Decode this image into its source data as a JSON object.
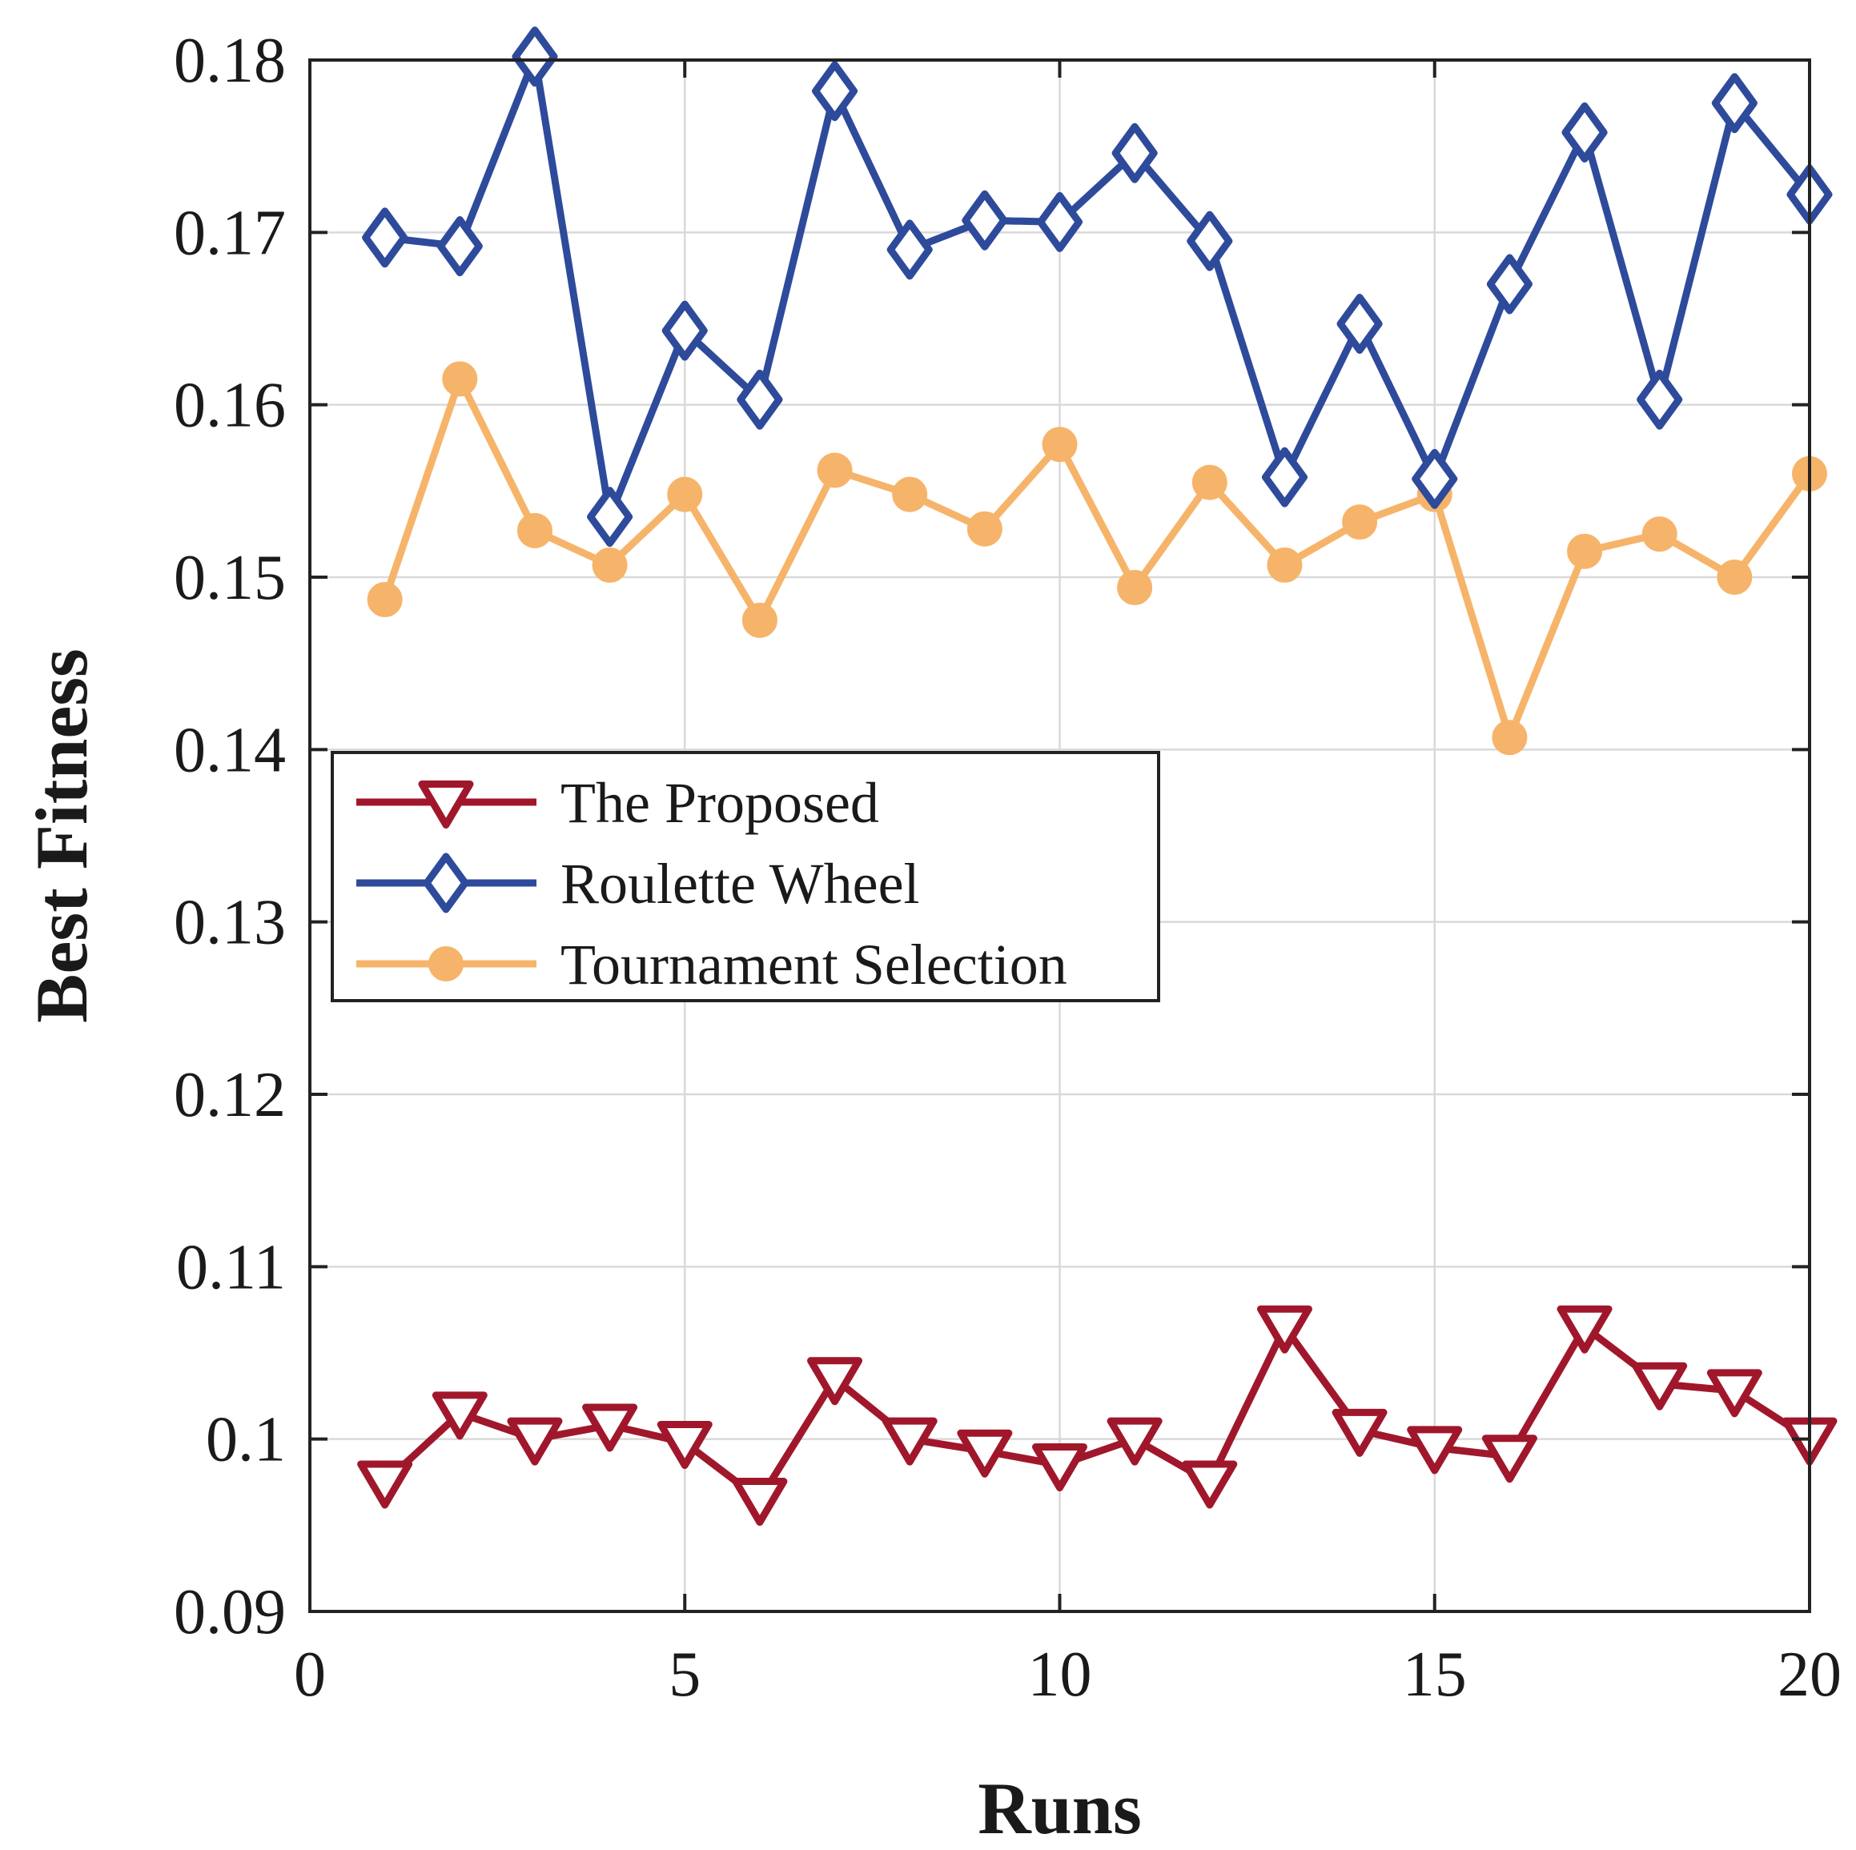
{
  "chart_data": {
    "type": "line",
    "title": "",
    "xlabel": "Runs",
    "ylabel": "Best Fitness",
    "xlim": [
      0,
      20
    ],
    "ylim": [
      0.09,
      0.18
    ],
    "xticks": [
      0,
      5,
      10,
      15,
      20
    ],
    "xtick_labels": [
      "0",
      "5",
      "10",
      "15",
      "20"
    ],
    "yticks": [
      0.09,
      0.1,
      0.11,
      0.12,
      0.13,
      0.14,
      0.15,
      0.16,
      0.17,
      0.18
    ],
    "ytick_labels": [
      "0.09",
      "0.1",
      "0.11",
      "0.12",
      "0.13",
      "0.14",
      "0.15",
      "0.16",
      "0.17",
      "0.18"
    ],
    "grid": true,
    "legend_position": "center-left",
    "x": [
      1,
      2,
      3,
      4,
      5,
      6,
      7,
      8,
      9,
      10,
      11,
      12,
      13,
      14,
      15,
      16,
      17,
      18,
      19,
      20
    ],
    "series": [
      {
        "name": "The Proposed",
        "color": "#a0172b",
        "marker": "triangle-down",
        "values": [
          0.0975,
          0.1015,
          0.1,
          0.1008,
          0.0998,
          0.0965,
          0.1035,
          0.1,
          0.0993,
          0.0985,
          0.1,
          0.0975,
          0.1065,
          0.1005,
          0.0995,
          0.099,
          0.1065,
          0.1032,
          0.1028,
          0.1
        ]
      },
      {
        "name": "Roulette Wheel",
        "color": "#2e4a9b",
        "marker": "diamond",
        "values": [
          0.1697,
          0.1692,
          0.1802,
          0.1535,
          0.1643,
          0.1603,
          0.1782,
          0.169,
          0.1707,
          0.1706,
          0.1746,
          0.1695,
          0.1558,
          0.1647,
          0.1557,
          0.167,
          0.1758,
          0.1603,
          0.1775,
          0.1722
        ]
      },
      {
        "name": "Tournament Selection",
        "color": "#f6b46a",
        "marker": "circle",
        "values": [
          0.1487,
          0.1615,
          0.1527,
          0.1507,
          0.1548,
          0.1475,
          0.1562,
          0.1548,
          0.1528,
          0.1577,
          0.1494,
          0.1555,
          0.1507,
          0.1532,
          0.1548,
          0.1407,
          0.1515,
          0.1525,
          0.15,
          0.156
        ]
      }
    ]
  }
}
